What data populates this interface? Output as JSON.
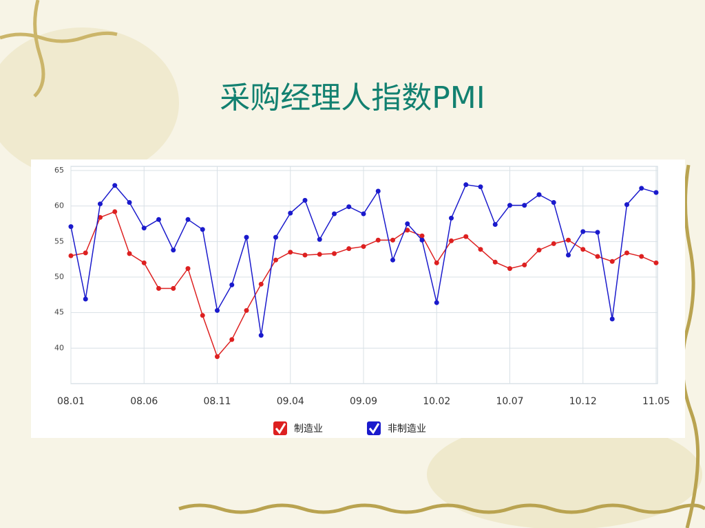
{
  "chart_data": {
    "type": "line",
    "title": "采购经理人指数PMI",
    "categories": [
      "08.01",
      null,
      null,
      null,
      null,
      "08.06",
      null,
      null,
      null,
      null,
      "08.11",
      null,
      null,
      null,
      null,
      "09.04",
      null,
      null,
      null,
      null,
      "09.09",
      null,
      null,
      null,
      null,
      "10.02",
      null,
      null,
      null,
      null,
      "10.07",
      null,
      null,
      null,
      null,
      "10.12",
      null,
      null,
      null,
      null,
      "11.05"
    ],
    "series": [
      {
        "name": "制造业",
        "color": "#dd2020",
        "values": [
          53.0,
          53.4,
          58.4,
          59.2,
          53.3,
          52.0,
          48.4,
          48.4,
          51.2,
          44.6,
          38.8,
          41.2,
          45.3,
          49.0,
          52.4,
          53.5,
          53.1,
          53.2,
          53.3,
          54.0,
          54.3,
          55.2,
          55.2,
          56.6,
          55.8,
          52.0,
          55.1,
          55.7,
          53.9,
          52.1,
          51.2,
          51.7,
          53.8,
          54.7,
          55.2,
          53.9,
          52.9,
          52.2,
          53.4,
          52.9,
          52.0
        ]
      },
      {
        "name": "非制造业",
        "color": "#1a1acc",
        "values": [
          57.1,
          46.9,
          60.3,
          62.9,
          60.5,
          56.9,
          58.1,
          53.8,
          58.1,
          56.7,
          45.3,
          48.9,
          55.6,
          41.8,
          55.6,
          59.0,
          60.8,
          55.3,
          58.9,
          59.9,
          58.9,
          62.1,
          52.4,
          57.5,
          55.2,
          46.4,
          58.3,
          63.0,
          62.7,
          57.4,
          60.1,
          60.1,
          61.6,
          60.5,
          53.1,
          56.4,
          56.3,
          44.1,
          60.2,
          62.5,
          61.9
        ]
      }
    ],
    "ylim": [
      35,
      65
    ],
    "yticks": [
      40,
      45,
      50,
      55,
      60,
      65
    ],
    "grid": true,
    "legend": "bottom"
  }
}
